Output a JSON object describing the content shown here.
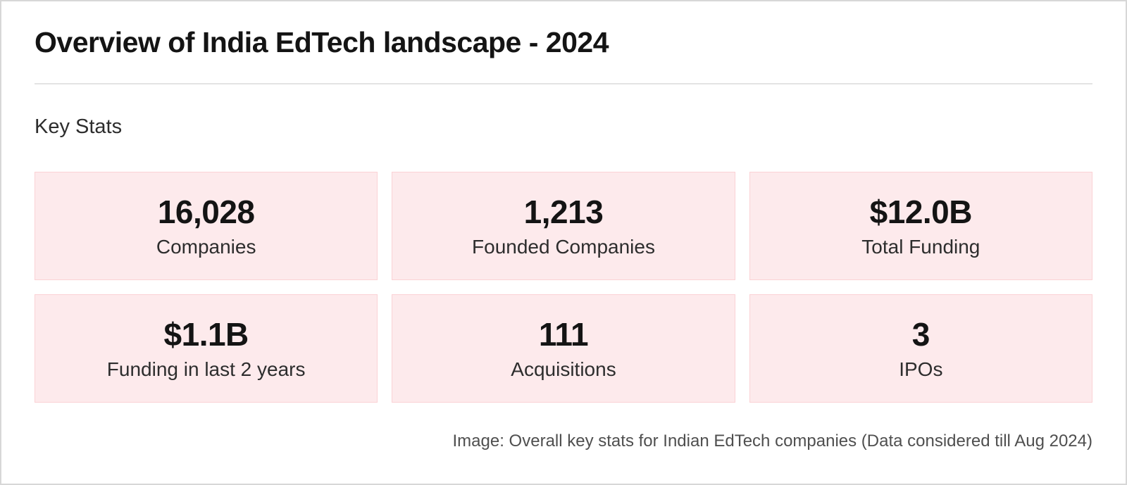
{
  "page": {
    "title": "Overview of India EdTech landscape - 2024",
    "section_heading": "Key Stats",
    "caption": "Image: Overall key stats for Indian EdTech companies (Data considered till Aug 2024)"
  },
  "stats": [
    {
      "value": "16,028",
      "label": "Companies"
    },
    {
      "value": "1,213",
      "label": "Founded Companies"
    },
    {
      "value": "$12.0B",
      "label": "Total Funding"
    },
    {
      "value": "$1.1B",
      "label": "Funding in last 2 years"
    },
    {
      "value": "111",
      "label": "Acquisitions"
    },
    {
      "value": "3",
      "label": "IPOs"
    }
  ],
  "chart_data": {
    "type": "table",
    "title": "Overview of India EdTech landscape - 2024",
    "subtitle": "Key Stats",
    "categories": [
      "Companies",
      "Founded Companies",
      "Total Funding",
      "Funding in last 2 years",
      "Acquisitions",
      "IPOs"
    ],
    "values": [
      16028,
      1213,
      "$12.0B",
      "$1.1B",
      111,
      3
    ],
    "caption": "Image: Overall key stats for Indian EdTech companies (Data considered till Aug 2024)",
    "layout": "2 rows x 3 columns of stat cards"
  },
  "colors": {
    "card_bg": "#fdeaec",
    "card_border": "#fbd2d5",
    "divider": "#e3e3e3",
    "frame_border": "#d7d7d7",
    "text_primary": "#141414",
    "text_secondary": "#2d2d2d",
    "caption_text": "#4f4f4f"
  }
}
